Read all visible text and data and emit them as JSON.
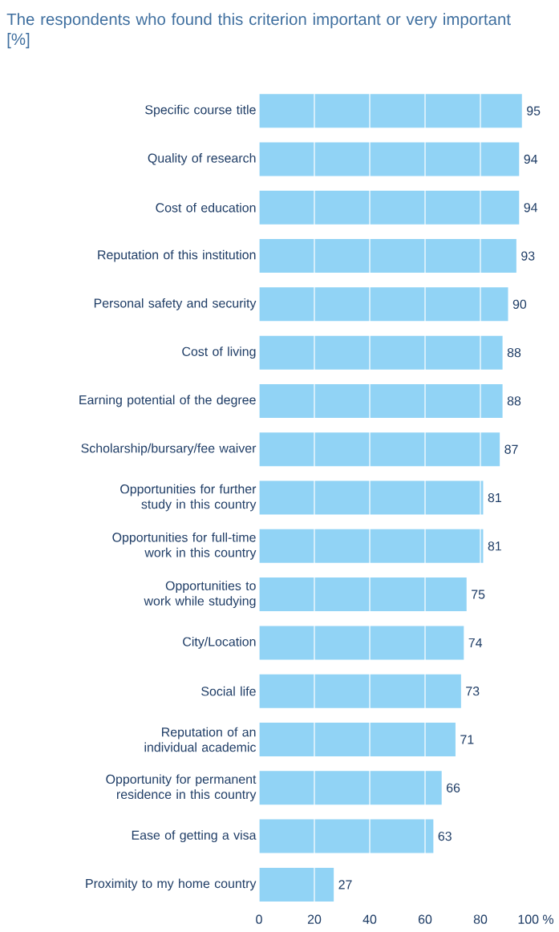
{
  "chart_data": {
    "type": "bar",
    "orientation": "horizontal",
    "title": "The respondents who found this criterion important or very important [%]",
    "categories": [
      "Specific course title",
      "Quality of research",
      "Cost of education",
      "Reputation of this institution",
      "Personal safety and security",
      "Cost of living",
      "Earning potential of the degree",
      "Scholarship/bursary/fee waiver",
      "Opportunities for further study in this country",
      "Opportunities for full-time work in this country",
      "Opportunities to work while studying",
      "City/Location",
      "Social life",
      "Reputation of an individual academic",
      "Opportunity for permanent residence in this country",
      "Ease of getting a visa",
      "Proximity to my home country"
    ],
    "values": [
      95,
      94,
      94,
      93,
      90,
      88,
      88,
      87,
      81,
      81,
      75,
      74,
      73,
      71,
      66,
      63,
      27
    ],
    "color": "#91d3f5",
    "data_labels": true,
    "grid": "x",
    "xlim": [
      0,
      100
    ],
    "xticks": [
      0,
      20,
      40,
      60,
      80,
      {
        "value": 100,
        "label": "100 %"
      }
    ]
  }
}
